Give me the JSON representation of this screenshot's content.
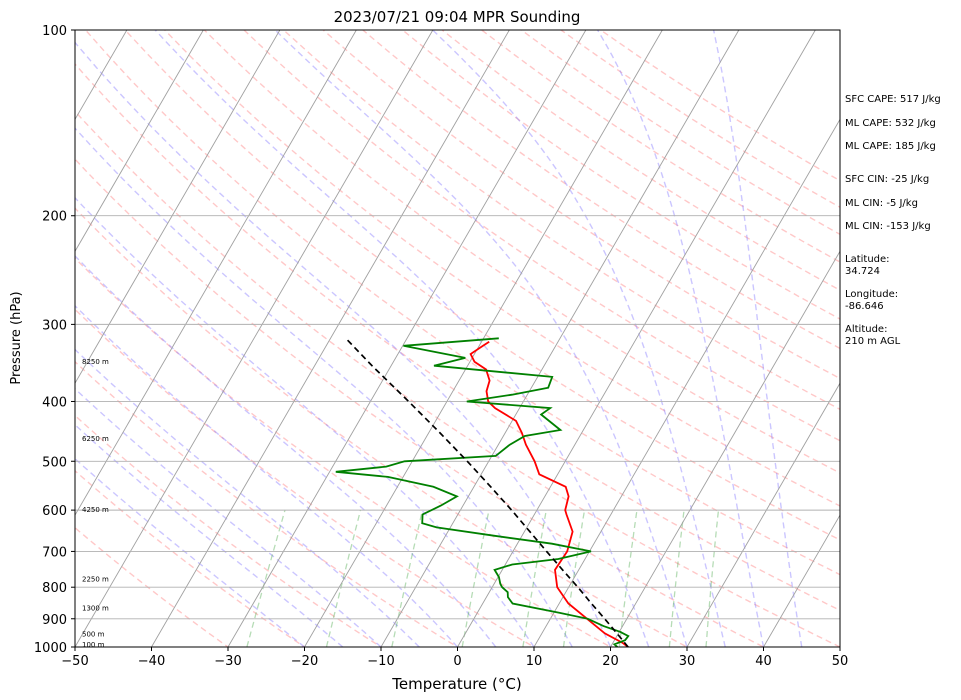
{
  "chart_data": {
    "type": "line",
    "title": "2023/07/21 09:04 MPR Sounding",
    "xlabel": "Temperature (°C)",
    "ylabel": "Pressure (hPa)",
    "xlim": [
      -50,
      50
    ],
    "ylim": [
      1000,
      100
    ],
    "y_scale": "log",
    "x_ticks": [
      "−50",
      "−40",
      "−30",
      "−20",
      "−10",
      "0",
      "10",
      "20",
      "30",
      "40",
      "50"
    ],
    "y_ticks": [
      1000,
      900,
      800,
      700,
      600,
      500,
      400,
      300,
      200,
      100
    ],
    "grid": true,
    "height_labels": [
      {
        "p": 993,
        "text": "100 m"
      },
      {
        "p": 955,
        "text": "500 m"
      },
      {
        "p": 866,
        "text": "1300 m"
      },
      {
        "p": 777,
        "text": "2250 m"
      },
      {
        "p": 600,
        "text": "4250 m"
      },
      {
        "p": 460,
        "text": "6250 m"
      },
      {
        "p": 345,
        "text": "8250 m"
      }
    ],
    "series": [
      {
        "color": "#ff0000",
        "points": [
          [
            1000,
            22.3
          ],
          [
            985,
            21.3
          ],
          [
            950,
            18.2
          ],
          [
            900,
            14.8
          ],
          [
            850,
            11.2
          ],
          [
            800,
            8.5
          ],
          [
            750,
            6.9
          ],
          [
            700,
            7.1
          ],
          [
            650,
            6.3
          ],
          [
            610,
            4.2
          ],
          [
            600,
            3.7
          ],
          [
            570,
            3.1
          ],
          [
            550,
            2.0
          ],
          [
            525,
            -2.4
          ],
          [
            500,
            -4.0
          ],
          [
            470,
            -6.4
          ],
          [
            450,
            -7.8
          ],
          [
            430,
            -9.5
          ],
          [
            410,
            -13.2
          ],
          [
            400,
            -14.6
          ],
          [
            385,
            -15.6
          ],
          [
            370,
            -16.0
          ],
          [
            355,
            -17.3
          ],
          [
            345,
            -19.4
          ],
          [
            335,
            -20.5
          ],
          [
            325,
            -19.5
          ],
          [
            320,
            -19.0
          ]
        ]
      },
      {
        "color": "#008000",
        "points": [
          [
            1000,
            20.9
          ],
          [
            990,
            20.3
          ],
          [
            975,
            21.4
          ],
          [
            960,
            21.5
          ],
          [
            945,
            20.1
          ],
          [
            925,
            17.5
          ],
          [
            900,
            14.9
          ],
          [
            880,
            10.7
          ],
          [
            850,
            3.9
          ],
          [
            830,
            2.8
          ],
          [
            815,
            2.4
          ],
          [
            800,
            1.3
          ],
          [
            790,
            0.8
          ],
          [
            770,
            0.1
          ],
          [
            750,
            -1.0
          ],
          [
            735,
            0.9
          ],
          [
            720,
            6.5
          ],
          [
            700,
            10.2
          ],
          [
            680,
            4.5
          ],
          [
            660,
            -3.7
          ],
          [
            640,
            -11.8
          ],
          [
            630,
            -14.0
          ],
          [
            610,
            -14.6
          ],
          [
            590,
            -12.9
          ],
          [
            570,
            -11.5
          ],
          [
            550,
            -15.3
          ],
          [
            530,
            -22.0
          ],
          [
            520,
            -29.2
          ],
          [
            510,
            -23.0
          ],
          [
            500,
            -21.0
          ],
          [
            490,
            -9.5
          ],
          [
            470,
            -8.5
          ],
          [
            455,
            -7.2
          ],
          [
            445,
            -3.0
          ],
          [
            420,
            -6.7
          ],
          [
            410,
            -6.0
          ],
          [
            400,
            -17.4
          ],
          [
            390,
            -12.0
          ],
          [
            380,
            -7.8
          ],
          [
            365,
            -8.1
          ],
          [
            350,
            -24.4
          ],
          [
            340,
            -20.9
          ],
          [
            325,
            -29.9
          ],
          [
            316,
            -18.0
          ]
        ]
      },
      {
        "color": "#000000",
        "dashed": true,
        "points": [
          [
            1000,
            22.3
          ],
          [
            950,
            19.8
          ],
          [
            900,
            17.1
          ],
          [
            850,
            14.2
          ],
          [
            800,
            11.2
          ],
          [
            750,
            7.9
          ],
          [
            700,
            4.4
          ],
          [
            650,
            0.7
          ],
          [
            600,
            -3.3
          ],
          [
            550,
            -7.8
          ],
          [
            500,
            -12.8
          ],
          [
            450,
            -18.5
          ],
          [
            400,
            -25.0
          ],
          [
            350,
            -32.5
          ],
          [
            316,
            -38.0
          ]
        ]
      }
    ]
  },
  "annotations": [
    {
      "text": "SFC CAPE: 517 J/kg"
    },
    {
      "text": "ML CAPE: 532 J/kg"
    },
    {
      "text": "ML CAPE: 185 J/kg"
    },
    {
      "text": "SFC CIN: -25 J/kg"
    },
    {
      "text": "ML CIN: -5 J/kg"
    },
    {
      "text": "ML CIN: -153 J/kg"
    },
    {
      "text": "Latitude:",
      "value": "34.724"
    },
    {
      "text": "Longitude:",
      "value": "-86.646"
    },
    {
      "text": "Altitude:",
      "value": "210 m AGL"
    }
  ]
}
